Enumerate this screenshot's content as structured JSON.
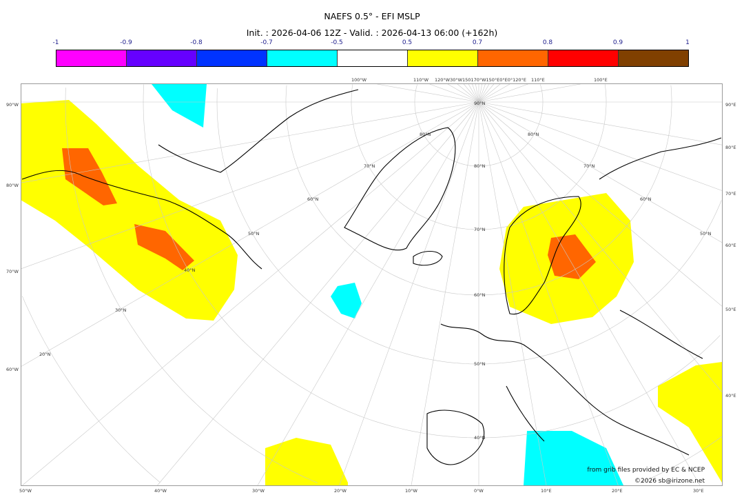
{
  "title": "NAEFS 0.5° - EFI MSLP",
  "subtitle": "Init. : 2026-04-06 12Z - Valid. : 2026-04-13 06:00 (+162h)",
  "colorbar": {
    "ticks": [
      "-1",
      "-0.9",
      "-0.8",
      "-0.7",
      "-0.5",
      "0.5",
      "0.7",
      "0.8",
      "0.9",
      "1"
    ],
    "colors": [
      "#ff00ff",
      "#6600ff",
      "#0033ff",
      "#00ffff",
      "#ffffff",
      "#ffff00",
      "#ff6600",
      "#ff0000",
      "#804000"
    ]
  },
  "map": {
    "left_labels": [
      "90°W",
      "80°W",
      "70°W",
      "60°W"
    ],
    "right_labels": [
      "90°E",
      "80°E",
      "70°E",
      "60°E",
      "50°E",
      "40°E"
    ],
    "bottom_labels": [
      "50°W",
      "40°W",
      "30°W",
      "20°W",
      "10°W",
      "0°W",
      "10°E",
      "20°E",
      "30°E"
    ],
    "top_labels": [
      "100°W",
      "110°W",
      "120°W30°W150170°W150°E0°E0°120°E",
      "110°E",
      "100°E"
    ],
    "lat_labels": [
      "90°N",
      "80°N",
      "70°N",
      "60°N",
      "50°N",
      "40°N"
    ],
    "west_lat_labels": [
      "80°N",
      "70°N",
      "60°N",
      "50°N",
      "40°N",
      "30°N",
      "20°N"
    ],
    "east_lat_labels": [
      "80°N",
      "70°N",
      "60°N",
      "50°N"
    ]
  },
  "credits": {
    "source": "from grib files provided by EC & NCEP",
    "copyright": "©2026 sb@irizone.net"
  }
}
